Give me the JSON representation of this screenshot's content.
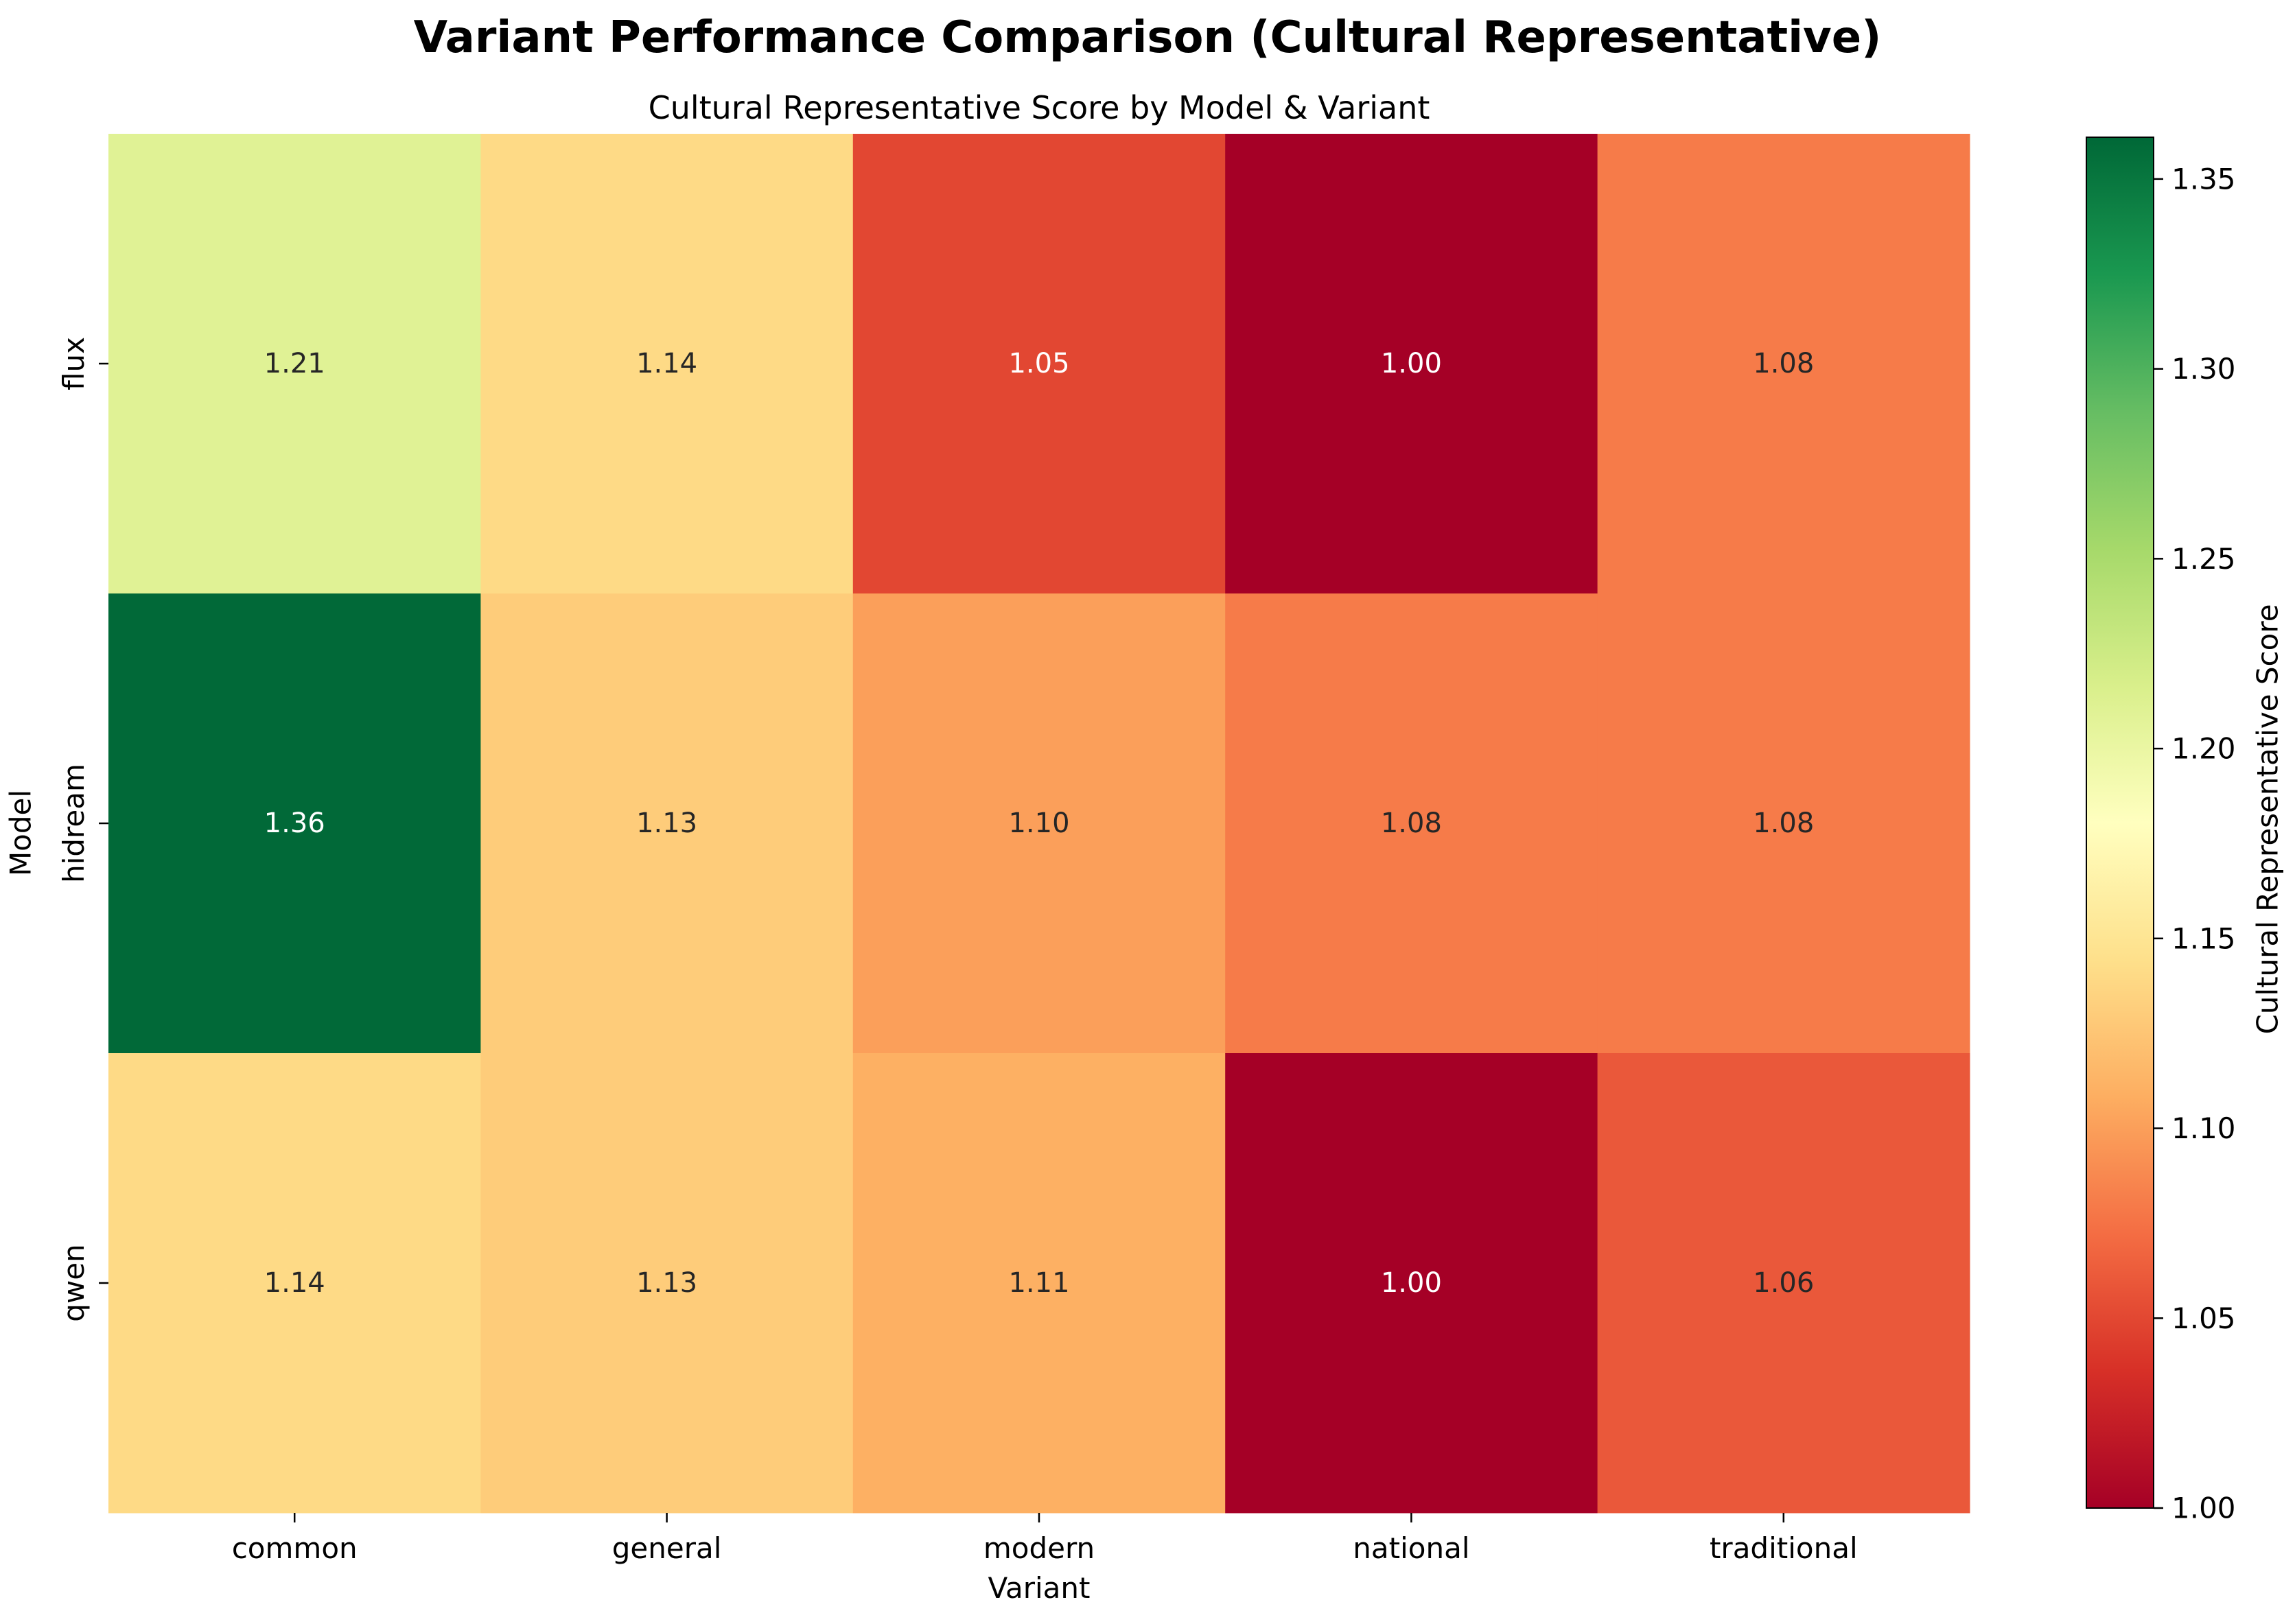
{
  "chart_data": {
    "type": "heatmap",
    "title": "Variant Performance Comparison (Cultural Representative)",
    "subtitle": "Cultural Representative Score by Model & Variant",
    "xlabel": "Variant",
    "ylabel": "Model",
    "colorbar_label": "Cultural Representative Score",
    "colormap": "RdYlGn",
    "x_categories": [
      "common",
      "general",
      "modern",
      "national",
      "traditional"
    ],
    "y_categories": [
      "flux",
      "hidream",
      "qwen"
    ],
    "values": [
      [
        1.21,
        1.14,
        1.05,
        1.0,
        1.08
      ],
      [
        1.36,
        1.13,
        1.1,
        1.08,
        1.08
      ],
      [
        1.14,
        1.13,
        1.11,
        1.0,
        1.06
      ]
    ],
    "value_labels": [
      [
        "1.21",
        "1.14",
        "1.05",
        "1.00",
        "1.08"
      ],
      [
        "1.36",
        "1.13",
        "1.10",
        "1.08",
        "1.08"
      ],
      [
        "1.14",
        "1.13",
        "1.11",
        "1.00",
        "1.06"
      ]
    ],
    "color_range": [
      1.0,
      1.361
    ],
    "colorbar_ticks": [
      "1.00",
      "1.05",
      "1.10",
      "1.15",
      "1.20",
      "1.25",
      "1.30",
      "1.35"
    ]
  }
}
